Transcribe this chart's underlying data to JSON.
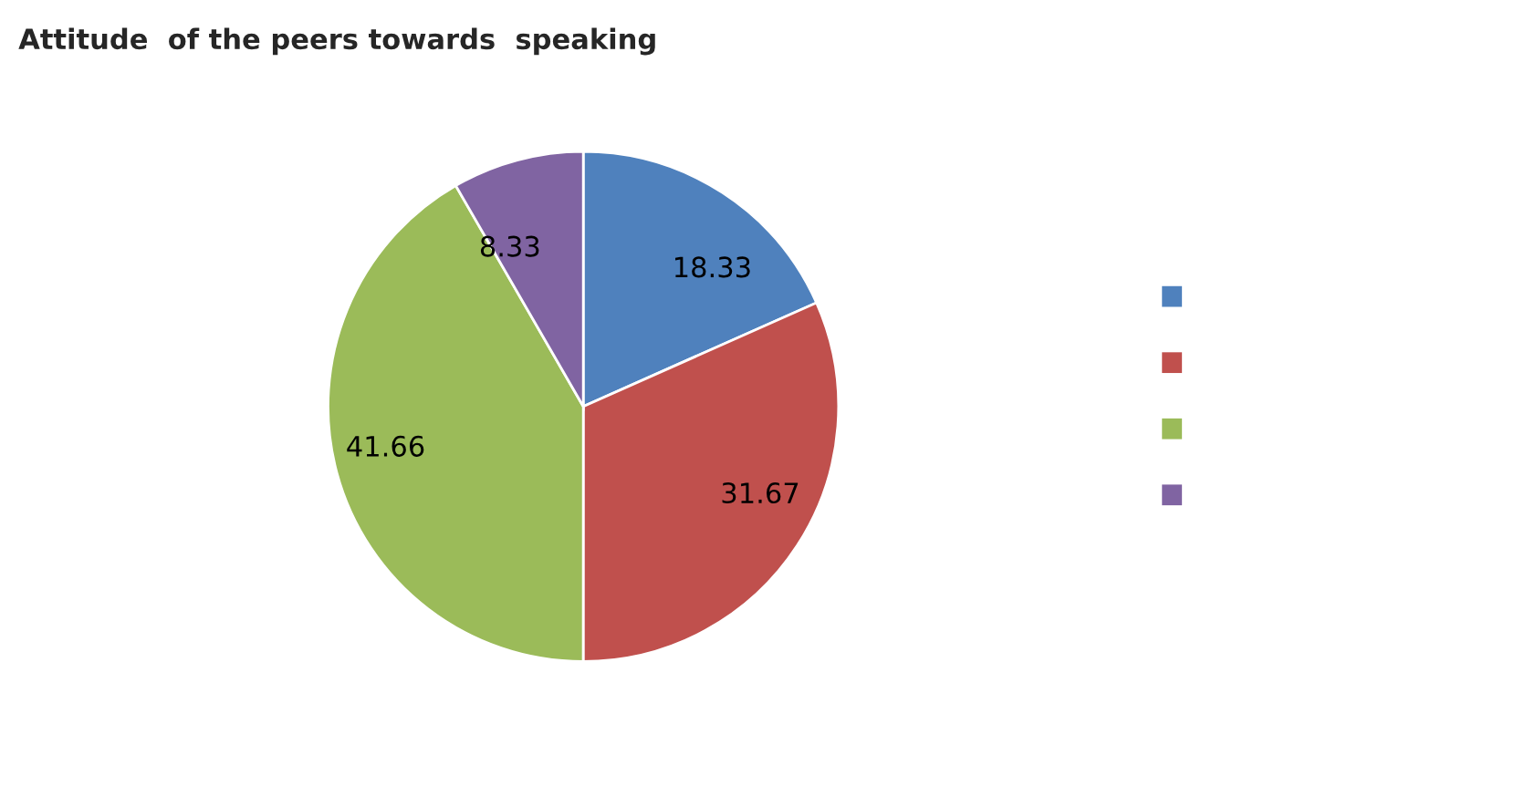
{
  "chart_data": {
    "type": "pie",
    "title": "Attitude  of the peers towards  speaking",
    "categories": [
      null,
      null,
      null,
      null
    ],
    "values": [
      18.33,
      31.67,
      41.66,
      8.33
    ],
    "colors": [
      "#4f81bd",
      "#c0504d",
      "#9bbb59",
      "#8064a2"
    ],
    "data_labels": true
  }
}
